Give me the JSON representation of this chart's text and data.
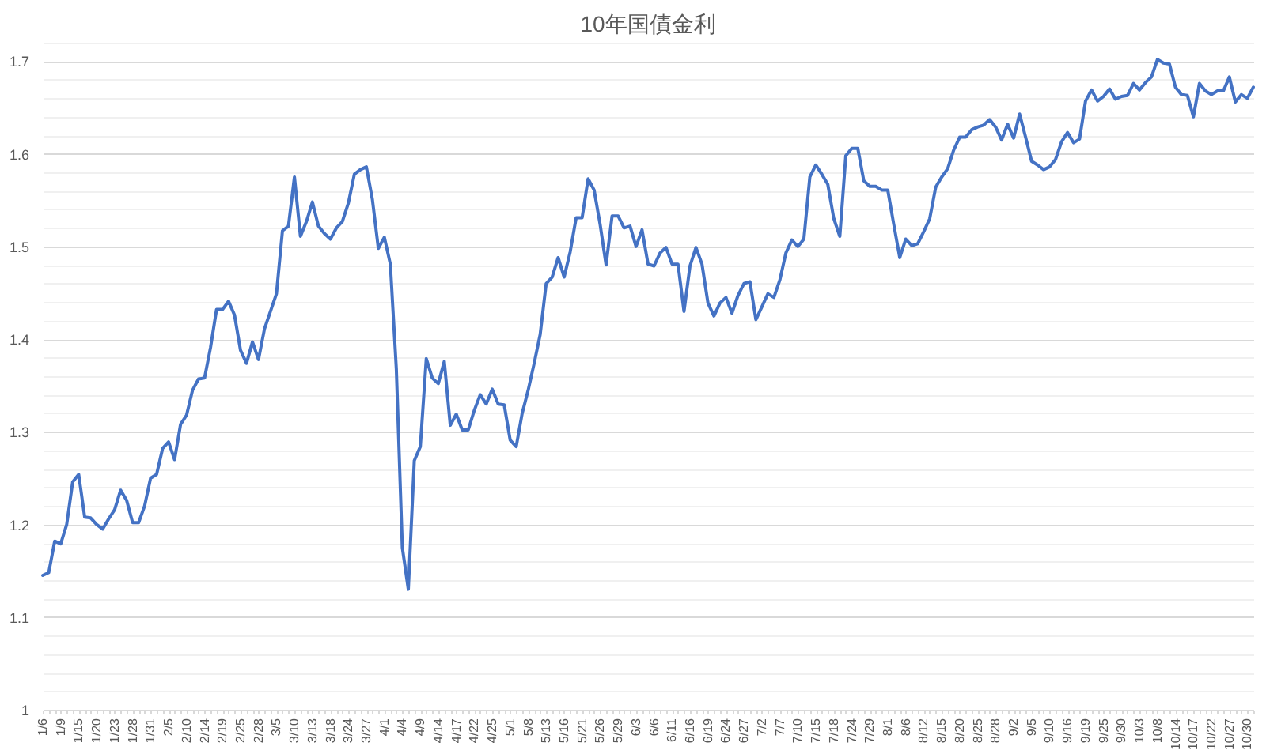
{
  "chart_data": {
    "type": "line",
    "title": "10年国債金利",
    "categories": [
      "1/6",
      null,
      null,
      "1/9",
      null,
      null,
      "1/15",
      null,
      null,
      "1/20",
      null,
      null,
      "1/23",
      null,
      null,
      "1/28",
      null,
      null,
      "1/31",
      null,
      null,
      "2/5",
      null,
      null,
      "2/10",
      null,
      null,
      "2/14",
      null,
      null,
      "2/19",
      null,
      null,
      "2/25",
      null,
      null,
      "2/28",
      null,
      null,
      "3/5",
      null,
      null,
      "3/10",
      null,
      null,
      "3/13",
      null,
      null,
      "3/18",
      null,
      null,
      "3/24",
      null,
      null,
      "3/27",
      null,
      null,
      "4/1",
      null,
      null,
      "4/4",
      null,
      null,
      "4/9",
      null,
      null,
      "4/14",
      null,
      null,
      "4/17",
      null,
      null,
      "4/22",
      null,
      null,
      "4/25",
      null,
      null,
      "5/1",
      null,
      null,
      "5/8",
      null,
      null,
      "5/13",
      null,
      null,
      "5/16",
      null,
      null,
      "5/21",
      null,
      null,
      "5/26",
      null,
      null,
      "5/29",
      null,
      null,
      "6/3",
      null,
      null,
      "6/6",
      null,
      null,
      "6/11",
      null,
      null,
      "6/16",
      null,
      null,
      "6/19",
      null,
      null,
      "6/24",
      null,
      null,
      "6/27",
      null,
      null,
      "7/2",
      null,
      null,
      "7/7",
      null,
      null,
      "7/10",
      null,
      null,
      "7/15",
      null,
      null,
      "7/18",
      null,
      null,
      "7/24",
      null,
      null,
      "7/29",
      null,
      null,
      "8/1",
      null,
      null,
      "8/6",
      null,
      null,
      "8/12",
      null,
      null,
      "8/15",
      null,
      null,
      "8/20",
      null,
      null,
      "8/25",
      null,
      null,
      "8/28",
      null,
      null,
      "9/2",
      null,
      null,
      "9/5",
      null,
      null,
      "9/10",
      null,
      null,
      "9/16",
      null,
      null,
      "9/19",
      null,
      null,
      "9/25",
      null,
      null,
      "9/30",
      null,
      null,
      "10/3",
      null,
      null,
      "10/8",
      null,
      null,
      "10/14",
      null,
      null,
      "10/17",
      null,
      null,
      "10/22",
      null,
      null,
      "10/27",
      null,
      null,
      "10/30",
      null
    ],
    "series": [
      {
        "color": "#4472c4",
        "values": [
          1.145,
          1.148,
          1.182,
          1.179,
          1.2,
          1.246,
          1.254,
          1.208,
          1.207,
          1.2,
          1.195,
          1.206,
          1.216,
          1.237,
          1.226,
          1.202,
          1.202,
          1.22,
          1.25,
          1.254,
          1.282,
          1.289,
          1.27,
          1.308,
          1.318,
          1.345,
          1.357,
          1.358,
          1.391,
          1.432,
          1.432,
          1.441,
          1.426,
          1.388,
          1.374,
          1.397,
          1.378,
          1.411,
          1.43,
          1.449,
          1.517,
          1.522,
          1.575,
          1.511,
          1.527,
          1.548,
          1.522,
          1.514,
          1.508,
          1.52,
          1.527,
          1.547,
          1.578,
          1.583,
          1.586,
          1.551,
          1.498,
          1.51,
          1.481,
          1.368,
          1.175,
          1.13,
          1.269,
          1.284,
          1.379,
          1.358,
          1.352,
          1.376,
          1.307,
          1.319,
          1.302,
          1.302,
          1.323,
          1.34,
          1.33,
          1.346,
          1.33,
          1.329,
          1.291,
          1.284,
          1.32,
          1.345,
          1.374,
          1.405,
          1.46,
          1.467,
          1.488,
          1.467,
          1.494,
          1.531,
          1.531,
          1.573,
          1.561,
          1.524,
          1.48,
          1.533,
          1.533,
          1.52,
          1.522,
          1.5,
          1.518,
          1.481,
          1.479,
          1.493,
          1.499,
          1.481,
          1.481,
          1.43,
          1.479,
          1.499,
          1.481,
          1.439,
          1.425,
          1.439,
          1.445,
          1.428,
          1.447,
          1.46,
          1.462,
          1.421,
          1.435,
          1.449,
          1.445,
          1.464,
          1.493,
          1.507,
          1.5,
          1.508,
          1.575,
          1.588,
          1.578,
          1.567,
          1.53,
          1.511,
          1.598,
          1.606,
          1.606,
          1.571,
          1.565,
          1.565,
          1.561,
          1.561,
          1.524,
          1.488,
          1.508,
          1.501,
          1.503,
          1.516,
          1.53,
          1.564,
          1.575,
          1.584,
          1.604,
          1.618,
          1.618,
          1.626,
          1.629,
          1.631,
          1.637,
          1.629,
          1.615,
          1.632,
          1.617,
          1.643,
          1.618,
          1.592,
          1.588,
          1.583,
          1.586,
          1.594,
          1.613,
          1.623,
          1.612,
          1.616,
          1.657,
          1.669,
          1.657,
          1.662,
          1.67,
          1.659,
          1.662,
          1.663,
          1.676,
          1.669,
          1.677,
          1.683,
          1.702,
          1.698,
          1.697,
          1.672,
          1.664,
          1.663,
          1.64,
          1.676,
          1.668,
          1.664,
          1.668,
          1.668,
          1.683,
          1.656,
          1.664,
          1.66,
          1.672
        ]
      }
    ],
    "ylim": [
      1,
      1.72
    ],
    "yticks": [
      1,
      {
        "value": 1.02,
        "label": null
      },
      {
        "value": 1.04,
        "label": null
      },
      {
        "value": 1.06,
        "label": null
      },
      {
        "value": 1.08,
        "label": null
      },
      1.1,
      {
        "value": 1.12,
        "label": null
      },
      {
        "value": 1.14,
        "label": null
      },
      {
        "value": 1.16,
        "label": null
      },
      {
        "value": 1.18,
        "label": null
      },
      1.2,
      {
        "value": 1.22,
        "label": null
      },
      {
        "value": 1.24,
        "label": null
      },
      {
        "value": 1.26,
        "label": null
      },
      {
        "value": 1.28,
        "label": null
      },
      1.3,
      {
        "value": 1.32,
        "label": null
      },
      {
        "value": 1.34,
        "label": null
      },
      {
        "value": 1.36,
        "label": null
      },
      {
        "value": 1.38,
        "label": null
      },
      1.4,
      {
        "value": 1.42,
        "label": null
      },
      {
        "value": 1.44,
        "label": null
      },
      {
        "value": 1.46,
        "label": null
      },
      {
        "value": 1.48,
        "label": null
      },
      1.5,
      {
        "value": 1.52,
        "label": null
      },
      {
        "value": 1.54,
        "label": null
      },
      {
        "value": 1.56,
        "label": null
      },
      {
        "value": 1.58,
        "label": null
      },
      1.6,
      {
        "value": 1.62,
        "label": null
      },
      {
        "value": 1.64,
        "label": null
      },
      {
        "value": 1.66,
        "label": null
      },
      {
        "value": 1.68,
        "label": null
      },
      1.7,
      {
        "value": 1.72,
        "label": null
      }
    ],
    "grid": "y"
  }
}
